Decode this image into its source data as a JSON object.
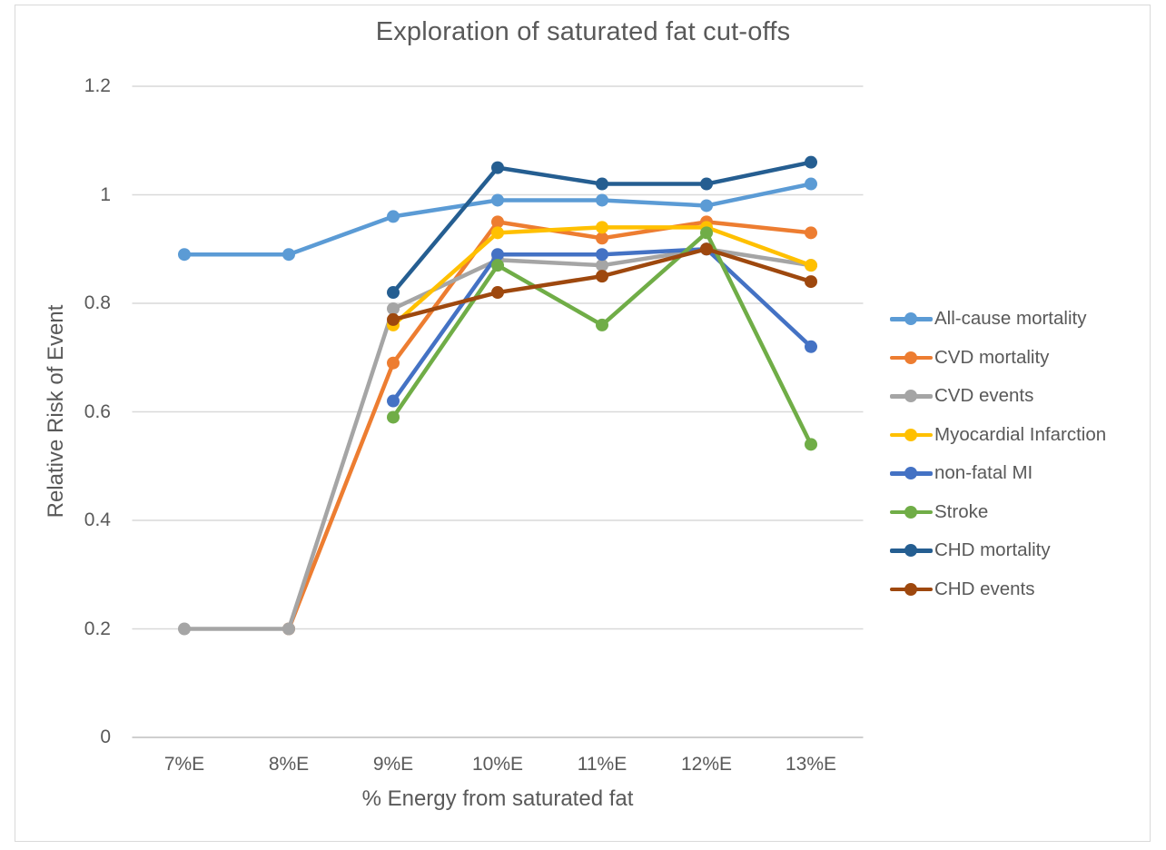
{
  "style": {
    "text_color": "#595959",
    "grid_color": "#d9d9d9",
    "axis_line_color": "#bfbfbf",
    "frame_border_color": "#d9d9d9",
    "background": "#ffffff"
  },
  "chart_data": {
    "type": "line",
    "title": "Exploration of saturated fat cut-offs",
    "xlabel": "% Energy from saturated fat",
    "ylabel": "Relative Risk of Event",
    "categories": [
      "7%E",
      "8%E",
      "9%E",
      "10%E",
      "11%E",
      "12%E",
      "13%E"
    ],
    "ylim": [
      0,
      1.2
    ],
    "ytick_values": [
      0,
      0.2,
      0.4,
      0.6,
      0.8,
      1,
      1.2
    ],
    "ytick_labels": [
      "0",
      "0.2",
      "0.4",
      "0.6",
      "0.8",
      "1",
      "1.2"
    ],
    "grid": true,
    "legend_position": "right",
    "marker": "circle",
    "series": [
      {
        "name": "All-cause mortality",
        "color": "#5B9BD5",
        "values": [
          0.89,
          0.89,
          0.96,
          0.99,
          0.99,
          0.98,
          1.02
        ]
      },
      {
        "name": "CVD mortality",
        "color": "#ED7D31",
        "values": [
          null,
          0.2,
          0.69,
          0.95,
          0.92,
          0.95,
          0.93
        ]
      },
      {
        "name": "CVD events",
        "color": "#A5A5A5",
        "values": [
          0.2,
          0.2,
          0.79,
          0.88,
          0.87,
          0.9,
          0.87
        ]
      },
      {
        "name": "Myocardial Infarction",
        "color": "#FFC000",
        "values": [
          null,
          null,
          0.76,
          0.93,
          0.94,
          0.94,
          0.87
        ]
      },
      {
        "name": "non-fatal MI",
        "color": "#4472C4",
        "values": [
          null,
          null,
          0.62,
          0.89,
          0.89,
          0.9,
          0.72
        ]
      },
      {
        "name": "Stroke",
        "color": "#70AD47",
        "values": [
          null,
          null,
          0.59,
          0.87,
          0.76,
          0.93,
          0.54
        ]
      },
      {
        "name": "CHD mortality",
        "color": "#255E91",
        "values": [
          null,
          null,
          0.82,
          1.05,
          1.02,
          1.02,
          1.06
        ]
      },
      {
        "name": "CHD events",
        "color": "#9E480E",
        "values": [
          null,
          null,
          0.77,
          0.82,
          0.85,
          0.9,
          0.84
        ]
      }
    ]
  }
}
